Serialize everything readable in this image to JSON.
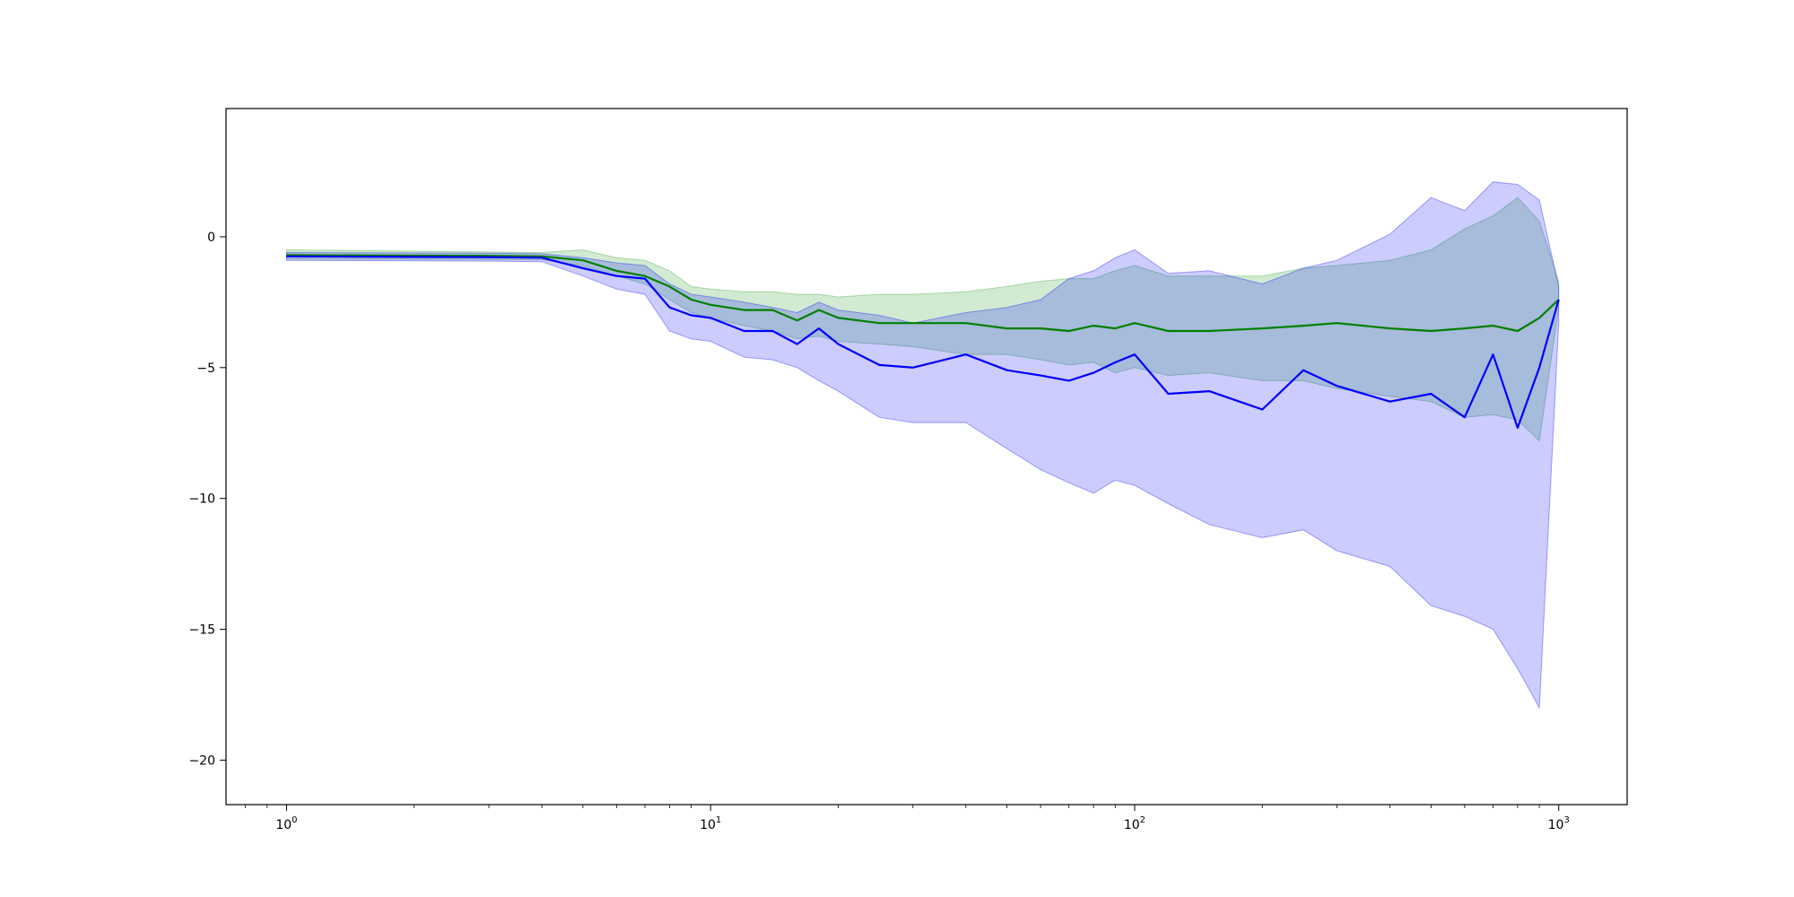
{
  "chart_data": {
    "type": "line",
    "title": "",
    "xlabel": "",
    "ylabel": "",
    "x_scale": "log",
    "xlim": [
      0.72,
      1450
    ],
    "ylim": [
      -21.7,
      4.9
    ],
    "grid": false,
    "legend": null,
    "x_ticks": [
      {
        "value": 1,
        "base": "10",
        "exp": "0"
      },
      {
        "value": 10,
        "base": "10",
        "exp": "1"
      },
      {
        "value": 100,
        "base": "10",
        "exp": "2"
      },
      {
        "value": 1000,
        "base": "10",
        "exp": "3"
      }
    ],
    "y_ticks": [
      {
        "value": 0,
        "label": "0"
      },
      {
        "value": -5,
        "label": "−5"
      },
      {
        "value": -10,
        "label": "−10"
      },
      {
        "value": -15,
        "label": "−15"
      },
      {
        "value": -20,
        "label": "−20"
      }
    ],
    "series": [
      {
        "color": "#008000",
        "band_color": "#2ca02c",
        "band_opacity": 0.22,
        "x": [
          1,
          2,
          3,
          4,
          5,
          6,
          7,
          8,
          9,
          10,
          12,
          14,
          16,
          18,
          20,
          25,
          30,
          40,
          50,
          60,
          70,
          80,
          90,
          100,
          120,
          150,
          200,
          250,
          300,
          400,
          500,
          600,
          700,
          800,
          900,
          1000
        ],
        "y": [
          -0.7,
          -0.72,
          -0.73,
          -0.75,
          -0.9,
          -1.3,
          -1.5,
          -1.9,
          -2.4,
          -2.6,
          -2.8,
          -2.8,
          -3.2,
          -2.8,
          -3.1,
          -3.3,
          -3.3,
          -3.3,
          -3.5,
          -3.5,
          -3.6,
          -3.4,
          -3.5,
          -3.3,
          -3.6,
          -3.6,
          -3.5,
          -3.4,
          -3.3,
          -3.5,
          -3.6,
          -3.5,
          -3.4,
          -3.6,
          -3.1,
          -2.4
        ],
        "upper": [
          -0.5,
          -0.55,
          -0.58,
          -0.6,
          -0.5,
          -0.8,
          -0.9,
          -1.3,
          -1.9,
          -2.0,
          -2.1,
          -2.1,
          -2.2,
          -2.2,
          -2.3,
          -2.2,
          -2.2,
          -2.1,
          -1.9,
          -1.7,
          -1.6,
          -1.6,
          -1.3,
          -1.1,
          -1.5,
          -1.5,
          -1.5,
          -1.2,
          -1.1,
          -0.9,
          -0.5,
          0.3,
          0.8,
          1.5,
          0.6,
          -1.7
        ],
        "lower": [
          -0.85,
          -0.86,
          -0.87,
          -0.88,
          -1.1,
          -1.5,
          -1.8,
          -2.4,
          -2.9,
          -3.1,
          -3.4,
          -3.6,
          -3.9,
          -3.8,
          -4.0,
          -4.1,
          -4.2,
          -4.5,
          -4.5,
          -4.7,
          -4.9,
          -4.8,
          -5.2,
          -5.0,
          -5.3,
          -5.2,
          -5.5,
          -5.5,
          -5.8,
          -6.1,
          -6.3,
          -6.9,
          -6.8,
          -7.0,
          -7.8,
          -2.7
        ]
      },
      {
        "color": "#0000ff",
        "band_color": "#0000ff",
        "band_opacity": 0.2,
        "x": [
          1,
          2,
          3,
          4,
          5,
          6,
          7,
          8,
          9,
          10,
          12,
          14,
          16,
          18,
          20,
          25,
          30,
          40,
          50,
          60,
          70,
          80,
          90,
          100,
          120,
          150,
          200,
          250,
          300,
          400,
          500,
          600,
          700,
          800,
          900,
          1000
        ],
        "y": [
          -0.75,
          -0.77,
          -0.78,
          -0.8,
          -1.2,
          -1.5,
          -1.6,
          -2.7,
          -3.0,
          -3.1,
          -3.6,
          -3.6,
          -4.1,
          -3.5,
          -4.1,
          -4.9,
          -5.0,
          -4.5,
          -5.1,
          -5.3,
          -5.5,
          -5.2,
          -4.8,
          -4.5,
          -6.0,
          -5.9,
          -6.6,
          -5.1,
          -5.7,
          -6.3,
          -6.0,
          -6.9,
          -4.5,
          -7.3,
          -5.0,
          -2.4
        ],
        "upper": [
          -0.6,
          -0.62,
          -0.63,
          -0.65,
          -0.8,
          -1.0,
          -1.1,
          -1.8,
          -2.2,
          -2.3,
          -2.5,
          -2.7,
          -2.9,
          -2.5,
          -2.8,
          -3.0,
          -3.3,
          -2.9,
          -2.7,
          -2.4,
          -1.6,
          -1.3,
          -0.8,
          -0.5,
          -1.4,
          -1.3,
          -1.8,
          -1.2,
          -0.9,
          0.1,
          1.5,
          1.0,
          2.1,
          2.0,
          1.4,
          -1.9
        ],
        "lower": [
          -0.9,
          -0.92,
          -0.93,
          -0.95,
          -1.5,
          -2.0,
          -2.2,
          -3.6,
          -3.9,
          -4.0,
          -4.6,
          -4.7,
          -5.0,
          -5.5,
          -5.9,
          -6.9,
          -7.1,
          -7.1,
          -8.1,
          -8.9,
          -9.4,
          -9.8,
          -9.3,
          -9.5,
          -10.2,
          -11.0,
          -11.5,
          -11.2,
          -12.0,
          -12.6,
          -14.1,
          -14.5,
          -15.0,
          -16.5,
          -18.0,
          -3.3
        ]
      }
    ]
  }
}
